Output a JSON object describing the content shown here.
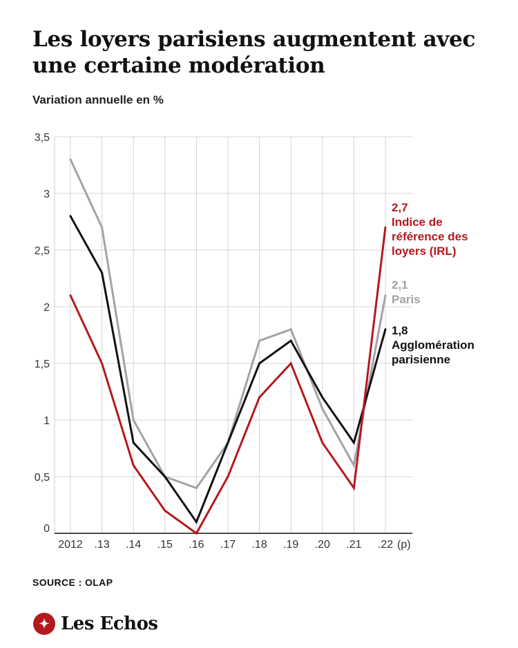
{
  "header": {
    "title": "Les loyers parisiens augmentent avec une certaine modération",
    "subtitle": "Variation annuelle en %"
  },
  "footer": {
    "source": "SOURCE : OLAP",
    "brand": "Les Echos"
  },
  "chart_data": {
    "type": "line",
    "title": "Les loyers parisiens augmentent avec une certaine modération",
    "subtitle": "Variation annuelle en %",
    "x": [
      "2012",
      ".13",
      ".14",
      ".15",
      ".16",
      ".17",
      ".18",
      ".19",
      ".20",
      ".21",
      ".22"
    ],
    "x_suffix": "(p)",
    "yticks": [
      "0",
      "0,5",
      "1",
      "1,5",
      "2",
      "2,5",
      "3",
      "3,5"
    ],
    "ylim": [
      0,
      3.5
    ],
    "grid": true,
    "series": [
      {
        "key": "paris",
        "name": "Paris",
        "end_label": "2,1",
        "label_lines": [
          "Paris"
        ],
        "color": "#a3a3a3",
        "values": [
          3.3,
          2.7,
          1.0,
          0.5,
          0.4,
          0.8,
          1.7,
          1.8,
          1.1,
          0.6,
          2.1
        ]
      },
      {
        "key": "agglo",
        "name": "Agglomération parisienne",
        "end_label": "1,8",
        "label_lines": [
          "Agglomération",
          "parisienne"
        ],
        "color": "#111111",
        "values": [
          2.8,
          2.3,
          0.8,
          0.5,
          0.1,
          0.8,
          1.5,
          1.7,
          1.2,
          0.8,
          1.8
        ]
      },
      {
        "key": "irl",
        "name": "Indice de référence des loyers (IRL)",
        "end_label": "2,7",
        "label_lines": [
          "Indice de",
          "référence des",
          "loyers (IRL)"
        ],
        "color": "#b3191e",
        "values": [
          2.1,
          1.5,
          0.6,
          0.2,
          0.0,
          0.5,
          1.2,
          1.5,
          0.8,
          0.4,
          2.7
        ]
      }
    ]
  }
}
